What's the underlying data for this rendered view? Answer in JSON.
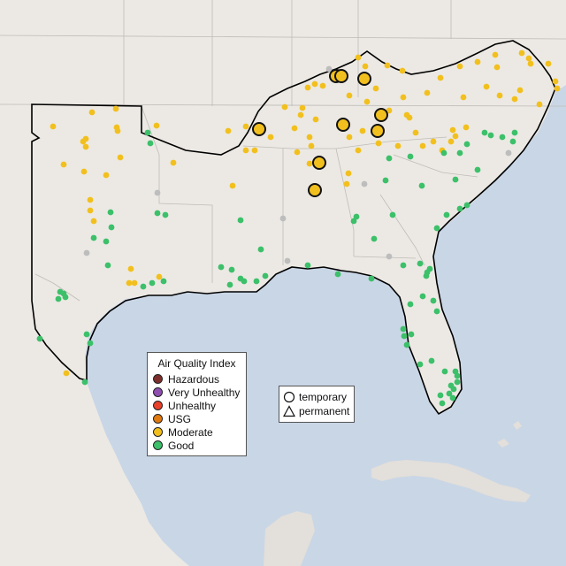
{
  "legend": {
    "title": "Air Quality Index",
    "categories": [
      {
        "label": "Hazardous",
        "color": "#7e2f2b"
      },
      {
        "label": "Very Unhealthy",
        "color": "#8e4fb0"
      },
      {
        "label": "Unhealthy",
        "color": "#e8402a"
      },
      {
        "label": "USG",
        "color": "#e07a10"
      },
      {
        "label": "Moderate",
        "color": "#f2c01e"
      },
      {
        "label": "Good",
        "color": "#3cc06a"
      }
    ]
  },
  "monitor_types": [
    {
      "label": "temporary",
      "icon": "circle-icon"
    },
    {
      "label": "permanent",
      "icon": "triangle-icon"
    }
  ],
  "colors": {
    "water": "#c9d6e6",
    "land": "#ece9e4",
    "outside_land": "#e3dfda",
    "region_outline": "#000000",
    "unknown_monitor": "#bdbdbd"
  }
}
